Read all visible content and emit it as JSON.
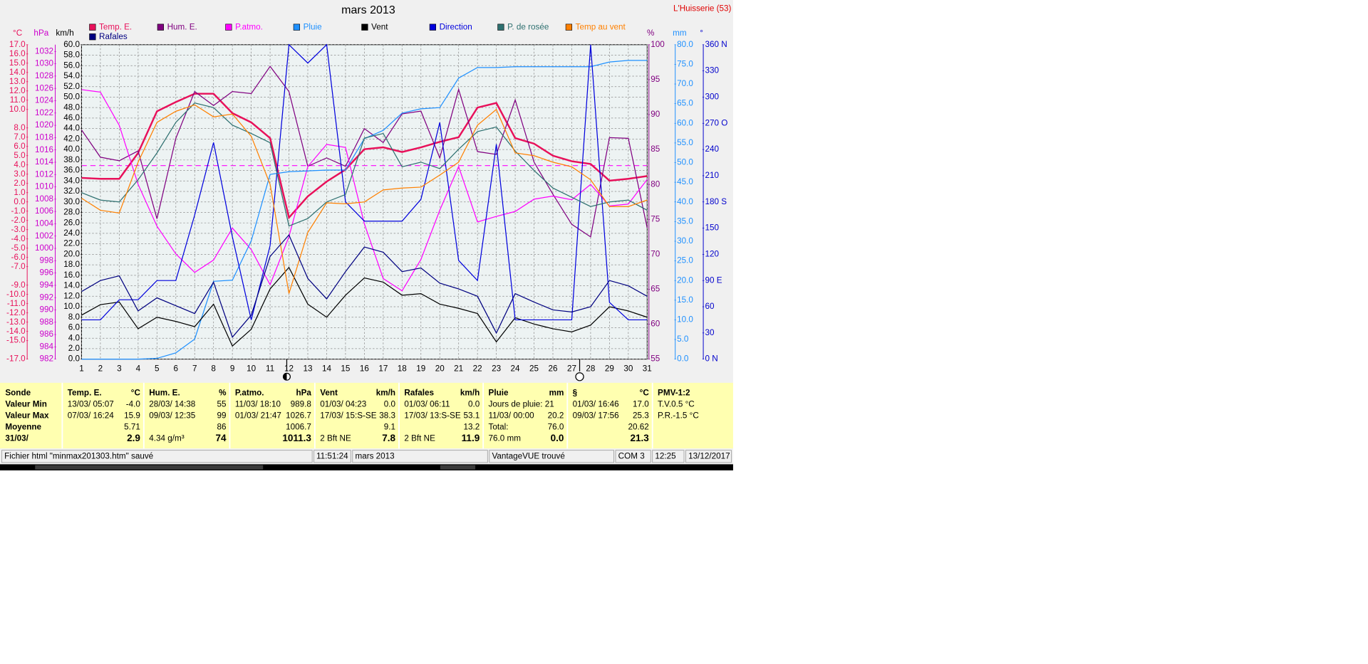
{
  "window": {
    "station": "L'Huisserie (53)"
  },
  "chart_data": {
    "type": "line",
    "title": "mars 2013",
    "x": [
      1,
      2,
      3,
      4,
      5,
      6,
      7,
      8,
      9,
      10,
      11,
      12,
      13,
      14,
      15,
      16,
      17,
      18,
      19,
      20,
      21,
      22,
      23,
      24,
      25,
      26,
      27,
      28,
      29,
      30,
      31
    ],
    "xlim": [
      1,
      31
    ],
    "grid": true,
    "axes": {
      "temp": {
        "unit": "°C",
        "color": "#e8105a",
        "lim": [
          -17,
          17
        ],
        "ticks": [
          {
            "value": 17,
            "label": "17.0"
          },
          {
            "value": 16,
            "label": "16.0"
          },
          {
            "value": 15,
            "label": "15.0"
          },
          {
            "value": 14,
            "label": "14.0"
          },
          {
            "value": 13,
            "label": "13.0"
          },
          {
            "value": 12,
            "label": "12.0"
          },
          {
            "value": 11,
            "label": "11.0"
          },
          {
            "value": 10,
            "label": "10.0"
          },
          {
            "value": 8,
            "label": "8.0"
          },
          {
            "value": 7,
            "label": "7.0"
          },
          {
            "value": 6,
            "label": "6.0"
          },
          {
            "value": 5,
            "label": "5.0"
          },
          {
            "value": 4,
            "label": "4.0"
          },
          {
            "value": 3,
            "label": "3.0"
          },
          {
            "value": 2,
            "label": "2.0"
          },
          {
            "value": 1,
            "label": "1.0"
          },
          {
            "value": 0,
            "label": "0.0"
          },
          {
            "value": -1,
            "label": "-1.0"
          },
          {
            "value": -2,
            "label": "-2.0"
          },
          {
            "value": -3,
            "label": "-3.0"
          },
          {
            "value": -4,
            "label": "-4.0"
          },
          {
            "value": -5,
            "label": "-5.0"
          },
          {
            "value": -6,
            "label": "-6.0"
          },
          {
            "value": -7,
            "label": "-7.0"
          },
          {
            "value": -9,
            "label": "-9.0"
          },
          {
            "value": -10,
            "label": "-10.0"
          },
          {
            "value": -11,
            "label": "-11.0"
          },
          {
            "value": -12,
            "label": "-12.0"
          },
          {
            "value": -13,
            "label": "-13.0"
          },
          {
            "value": -14,
            "label": "-14.0"
          },
          {
            "value": -15,
            "label": "-15.0"
          },
          {
            "value": -17,
            "label": "-17.0"
          }
        ]
      },
      "hpa": {
        "unit": "hPa",
        "color": "#cc00cc",
        "lim": [
          982,
          1033.1
        ],
        "ticks": [
          982,
          984,
          986,
          988,
          990,
          992,
          994,
          996,
          998,
          1000,
          1002,
          1004,
          1006,
          1008,
          1010,
          1012,
          1014,
          1016,
          1018,
          1020,
          1022,
          1024,
          1026,
          1028,
          1030,
          1032
        ]
      },
      "kmh": {
        "unit": "km/h",
        "color": "#000000",
        "lim": [
          0,
          60
        ],
        "ticks": [
          {
            "value": 0,
            "label": "0.0"
          },
          {
            "value": 2,
            "label": "2.0"
          },
          {
            "value": 4,
            "label": "4.0"
          },
          {
            "value": 6,
            "label": "6.0"
          },
          {
            "value": 8,
            "label": "8.0"
          },
          {
            "value": 10,
            "label": "10.0"
          },
          {
            "value": 12,
            "label": "12.0"
          },
          {
            "value": 14,
            "label": "14.0"
          },
          {
            "value": 16,
            "label": "16.0"
          },
          {
            "value": 18,
            "label": "18.0"
          },
          {
            "value": 20,
            "label": "20.0"
          },
          {
            "value": 22,
            "label": "22.0"
          },
          {
            "value": 24,
            "label": "24.0"
          },
          {
            "value": 26,
            "label": "26.0"
          },
          {
            "value": 28,
            "label": "28.0"
          },
          {
            "value": 30,
            "label": "30.0"
          },
          {
            "value": 32,
            "label": "32.0"
          },
          {
            "value": 34,
            "label": "34.0"
          },
          {
            "value": 36,
            "label": "36.0"
          },
          {
            "value": 38,
            "label": "38.0"
          },
          {
            "value": 40,
            "label": "40.0"
          },
          {
            "value": 42,
            "label": "42.0"
          },
          {
            "value": 44,
            "label": "44.0"
          },
          {
            "value": 46,
            "label": "46.0"
          },
          {
            "value": 48,
            "label": "48.0"
          },
          {
            "value": 50,
            "label": "50.0"
          },
          {
            "value": 52,
            "label": "52.0"
          },
          {
            "value": 54,
            "label": "54.0"
          },
          {
            "value": 56,
            "label": "56.0"
          },
          {
            "value": 58,
            "label": "58.0"
          },
          {
            "value": 60,
            "label": "60.0"
          }
        ]
      },
      "hum": {
        "unit": "%",
        "color": "#800080",
        "lim": [
          55,
          100
        ],
        "ticks": [
          55,
          60,
          65,
          70,
          75,
          80,
          85,
          90,
          95,
          100
        ]
      },
      "mm": {
        "unit": "mm",
        "color": "#1e90ff",
        "lim": [
          0,
          80
        ],
        "ticks": [
          {
            "value": 0,
            "label": "0.0"
          },
          {
            "value": 5,
            "label": "5.0"
          },
          {
            "value": 10,
            "label": "10.0"
          },
          {
            "value": 15,
            "label": "15.0"
          },
          {
            "value": 20,
            "label": "20.0"
          },
          {
            "value": 25,
            "label": "25.0"
          },
          {
            "value": 30,
            "label": "30.0"
          },
          {
            "value": 35,
            "label": "35.0"
          },
          {
            "value": 40,
            "label": "40.0"
          },
          {
            "value": 45,
            "label": "45.0"
          },
          {
            "value": 50,
            "label": "50.0"
          },
          {
            "value": 55,
            "label": "55.0"
          },
          {
            "value": 60,
            "label": "60.0"
          },
          {
            "value": 65,
            "label": "65.0"
          },
          {
            "value": 70,
            "label": "70.0"
          },
          {
            "value": 75,
            "label": "75.0"
          },
          {
            "value": 80,
            "label": "80.0"
          }
        ]
      },
      "dir": {
        "unit": "°",
        "color": "#0000cc",
        "lim": [
          0,
          360
        ],
        "ticks": [
          {
            "value": 0,
            "label": "0 N"
          },
          30,
          60,
          {
            "value": 90,
            "label": "90 E"
          },
          120,
          150,
          {
            "value": 180,
            "label": "180 S"
          },
          210,
          240,
          {
            "value": 270,
            "label": "270 O"
          },
          300,
          330,
          {
            "value": 360,
            "label": "360 N"
          }
        ]
      }
    },
    "series": [
      {
        "name": "Temp. E.",
        "color": "#e8105a",
        "axis": "temp",
        "line_width": 2,
        "values": [
          2.6,
          2.5,
          2.5,
          5.3,
          9.8,
          10.8,
          11.7,
          11.7,
          9.6,
          8.6,
          6.9,
          -1.7,
          0.6,
          2.2,
          3.5,
          5.7,
          5.9,
          5.4,
          5.9,
          6.5,
          7.0,
          10.2,
          10.7,
          6.9,
          6.3,
          5.0,
          4.4,
          4.1,
          2.3,
          2.5,
          2.8
        ]
      },
      {
        "name": "Hum. E.",
        "color": "#800080",
        "axis": "hum",
        "values": [
          87.8,
          83.9,
          83.4,
          84.8,
          75.1,
          86.6,
          93.3,
          91.3,
          93.3,
          93.0,
          96.9,
          93.3,
          82.6,
          83.8,
          82.6,
          88.0,
          86.0,
          90.1,
          90.5,
          83.8,
          93.6,
          84.7,
          84.3,
          92.1,
          83.2,
          78.6,
          74.3,
          72.5,
          86.7,
          86.6,
          73.8
        ]
      },
      {
        "name": "P.atmo.",
        "color": "#ff00ff",
        "axis": "hpa",
        "values": [
          1025.8,
          1025.4,
          1020.0,
          1010.4,
          1003.6,
          999.1,
          996.1,
          998.1,
          1003.3,
          999.8,
          994.1,
          1001.9,
          1013.3,
          1016.9,
          1016.4,
          1004.0,
          995.1,
          993.1,
          998.2,
          1006.2,
          1013.3,
          1004.3,
          1005.2,
          1006.0,
          1008.0,
          1008.5,
          1007.9,
          1010.4,
          1006.9,
          1007.2,
          1011.2
        ]
      },
      {
        "name": "Pluie",
        "color": "#1e90ff",
        "axis": "mm",
        "values": [
          0,
          0,
          0,
          0,
          0.2,
          1.6,
          5.1,
          19.8,
          20.1,
          30.1,
          47.0,
          47.7,
          47.9,
          48.1,
          48.1,
          56.1,
          58.2,
          62.6,
          63.7,
          64.0,
          71.5,
          74.2,
          74.2,
          74.4,
          74.4,
          74.4,
          74.4,
          74.4,
          75.6,
          76.0,
          76.0
        ]
      },
      {
        "name": "Vent",
        "color": "#000000",
        "axis": "kmh",
        "values": [
          8.4,
          10.4,
          10.9,
          5.8,
          8.0,
          7.2,
          6.2,
          10.5,
          2.5,
          5.7,
          13.4,
          17.5,
          10.5,
          8.0,
          12.2,
          15.5,
          14.7,
          12.2,
          12.5,
          10.5,
          9.7,
          8.7,
          3.3,
          7.9,
          6.7,
          5.8,
          5.2,
          6.5,
          10.0,
          9.2,
          8.0
        ]
      },
      {
        "name": "Direction",
        "color": "#0000dd",
        "axis": "dir",
        "values": [
          45,
          45,
          68,
          68,
          90,
          90,
          165,
          248,
          140,
          45,
          130,
          360,
          339,
          360,
          180,
          158,
          158,
          158,
          183,
          271,
          113,
          90,
          246,
          45,
          45,
          45,
          45,
          360,
          65,
          45,
          45
        ]
      },
      {
        "name": "P. de rosée",
        "color": "#2e7070",
        "axis": "temp",
        "values": [
          1.0,
          0.2,
          0.0,
          2.4,
          5.3,
          8.6,
          10.7,
          10.2,
          8.3,
          7.4,
          6.4,
          -2.6,
          -1.8,
          0.0,
          0.8,
          6.9,
          7.4,
          3.8,
          4.3,
          3.6,
          5.7,
          7.6,
          8.1,
          5.5,
          3.4,
          1.5,
          0.5,
          -0.5,
          0.0,
          0.2,
          -0.9
        ]
      },
      {
        "name": "Temp au vent",
        "color": "#ff8000",
        "axis": "temp",
        "values": [
          0.4,
          -0.9,
          -1.2,
          4.3,
          8.6,
          9.8,
          10.5,
          9.2,
          9.5,
          7.1,
          1.9,
          -9.9,
          -3.3,
          -0.1,
          -0.2,
          0.0,
          1.3,
          1.5,
          1.6,
          2.9,
          4.3,
          8.3,
          10.0,
          5.3,
          5.0,
          4.3,
          3.8,
          2.4,
          -0.5,
          -0.5,
          0.2
        ]
      },
      {
        "name": "Rafales",
        "color": "#000080",
        "axis": "kmh",
        "values": [
          12.9,
          15.0,
          15.9,
          9.2,
          11.7,
          10.2,
          8.7,
          14.7,
          4.2,
          8.4,
          19.6,
          23.7,
          15.4,
          11.5,
          16.7,
          21.4,
          20.4,
          16.7,
          17.4,
          14.5,
          13.4,
          12.0,
          5.0,
          12.5,
          10.9,
          9.4,
          9.0,
          10.0,
          15.0,
          14.0,
          12.0
        ]
      }
    ]
  },
  "summary_table": {
    "row_headers": [
      "Sonde",
      "Valeur Min",
      "Valeur Max",
      "Moyenne",
      "31/03/"
    ],
    "columns": [
      {
        "name": "Temp. E.",
        "unit": "°C",
        "rows": [
          {
            "left": "13/03/ 05:07",
            "right": "-4.0"
          },
          {
            "left": "07/03/ 16:24",
            "right": "15.9"
          },
          {
            "right": "5.71"
          },
          {
            "right": "2.9"
          }
        ]
      },
      {
        "name": "Hum. E.",
        "unit": "%",
        "rows": [
          {
            "left": "28/03/ 14:38",
            "right": "55"
          },
          {
            "left": "09/03/ 12:35",
            "right": "99"
          },
          {
            "right": "86"
          },
          {
            "left": "4.34 g/m³",
            "right": "74"
          }
        ]
      },
      {
        "name": "P.atmo.",
        "unit": "hPa",
        "rows": [
          {
            "left": "11/03/ 18:10",
            "right": "989.8"
          },
          {
            "left": "01/03/ 21:47",
            "right": "1026.7"
          },
          {
            "right": "1006.7"
          },
          {
            "right": "1011.3"
          }
        ]
      },
      {
        "name": "Vent",
        "unit": "km/h",
        "rows": [
          {
            "left": "01/03/ 04:23",
            "right": "0.0"
          },
          {
            "left": "17/03/ 15:S-SE",
            "right": "38.3"
          },
          {
            "right": "9.1"
          },
          {
            "left": "2 Bft NE",
            "right": "7.8"
          }
        ]
      },
      {
        "name": "Rafales",
        "unit": "km/h",
        "rows": [
          {
            "left": "01/03/ 06:11",
            "right": "0.0"
          },
          {
            "left": "17/03/ 13:S-SE",
            "right": "53.1"
          },
          {
            "right": "13.2"
          },
          {
            "left": "2 Bft NE",
            "right": "11.9"
          }
        ]
      },
      {
        "name": "Pluie",
        "unit": "mm",
        "rows": [
          {
            "left": "Jours de pluie: 21"
          },
          {
            "left": "11/03/ 00:00",
            "right": "20.2"
          },
          {
            "left": "Total:",
            "right": "76.0"
          },
          {
            "left": "76.0 mm",
            "right": "0.0"
          }
        ]
      },
      {
        "name": "§",
        "unit": "°C",
        "rows": [
          {
            "left": "01/03/ 16:46",
            "right": "17.0"
          },
          {
            "left": "09/03/ 17:56",
            "right": "25.3"
          },
          {
            "right": "20.62"
          },
          {
            "right": "21.3"
          }
        ]
      },
      {
        "name": "PMV-1:2",
        "rows": [
          {
            "left": "T.V.0.5 °C"
          },
          {
            "left": "P.R.-1.5 °C"
          }
        ]
      }
    ]
  },
  "status_bar": [
    "Fichier html  \"minmax201303.htm\" sauvé",
    "11:51:24",
    "mars 2013",
    "VantageVUE trouvé",
    "COM 3",
    "12:25",
    "13/12/2017"
  ]
}
